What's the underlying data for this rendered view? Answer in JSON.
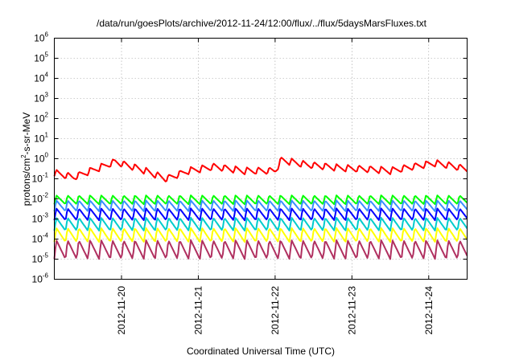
{
  "chart_data": {
    "type": "line",
    "title": "/data/run/goesPlots/archive/2012-11-24/12:00/flux/../flux/5daysMarsFluxes.txt",
    "xlabel": "Coordinated Universal Time (UTC)",
    "ylabel": {
      "base": "protons/cm",
      "sup": "2",
      "rest": "-s-sr-MeV"
    },
    "y_scale": "log",
    "ylim_exponents": [
      -6,
      6
    ],
    "y_ticks": [
      {
        "base": "10",
        "exp": "-6"
      },
      {
        "base": "10",
        "exp": "-5"
      },
      {
        "base": "10",
        "exp": "-4"
      },
      {
        "base": "10",
        "exp": "-3"
      },
      {
        "base": "10",
        "exp": "-2"
      },
      {
        "base": "10",
        "exp": "-1"
      },
      {
        "base": "10",
        "exp": "0"
      },
      {
        "base": "10",
        "exp": "1"
      },
      {
        "base": "10",
        "exp": "2"
      },
      {
        "base": "10",
        "exp": "3"
      },
      {
        "base": "10",
        "exp": "4"
      },
      {
        "base": "10",
        "exp": "5"
      },
      {
        "base": "10",
        "exp": "6"
      }
    ],
    "x_range": [
      "2012-11-19 03:00",
      "2012-11-24 12:00"
    ],
    "x_ticks": [
      "2012-11-20",
      "2012-11-21",
      "2012-11-22",
      "2012-11-23",
      "2012-11-24"
    ],
    "grid": true,
    "legend": "none",
    "sawtooth_period_hours": 3.5,
    "series": [
      {
        "color": "#ff0000",
        "pattern": "sawtooth",
        "amplitude_decades": 0.35,
        "values_at": [
          [
            "2012-11-19 03:00",
            0.2
          ],
          [
            "2012-11-19 09:00",
            0.12
          ],
          [
            "2012-11-19 17:00",
            0.35
          ],
          [
            "2012-11-19 22:00",
            0.7
          ],
          [
            "2012-11-20 06:00",
            0.3
          ],
          [
            "2012-11-20 14:00",
            0.1
          ],
          [
            "2012-11-20 21:00",
            0.25
          ],
          [
            "2012-11-21 05:00",
            0.4
          ],
          [
            "2012-11-21 14:00",
            0.25
          ],
          [
            "2012-11-22 00:00",
            0.25
          ],
          [
            "2012-11-22 02:00",
            0.85
          ],
          [
            "2012-11-22 10:00",
            0.5
          ],
          [
            "2012-11-22 20:00",
            0.35
          ],
          [
            "2012-11-23 05:00",
            0.3
          ],
          [
            "2012-11-23 12:00",
            0.25
          ],
          [
            "2012-11-23 19:00",
            0.4
          ],
          [
            "2012-11-24 02:00",
            0.6
          ],
          [
            "2012-11-24 07:00",
            0.45
          ],
          [
            "2012-11-24 12:00",
            0.3
          ]
        ]
      },
      {
        "color": "#00ff00",
        "pattern": "sawtooth",
        "base_value": 0.009,
        "amplitude_decades": 0.45
      },
      {
        "color": "#3a8fff",
        "pattern": "sawtooth",
        "base_value": 0.0045,
        "amplitude_decades": 0.55
      },
      {
        "color": "#0000ff",
        "pattern": "sawtooth",
        "base_value": 0.0017,
        "amplitude_decades": 0.6
      },
      {
        "color": "#00cccc",
        "pattern": "sawtooth",
        "base_value": 0.00055,
        "amplitude_decades": 0.65
      },
      {
        "color": "#ffff00",
        "pattern": "sawtooth",
        "base_value": 0.00016,
        "amplitude_decades": 0.7
      },
      {
        "color": "#b03060",
        "pattern": "sawtooth",
        "base_value": 3e-05,
        "amplitude_decades": 0.95
      }
    ]
  }
}
